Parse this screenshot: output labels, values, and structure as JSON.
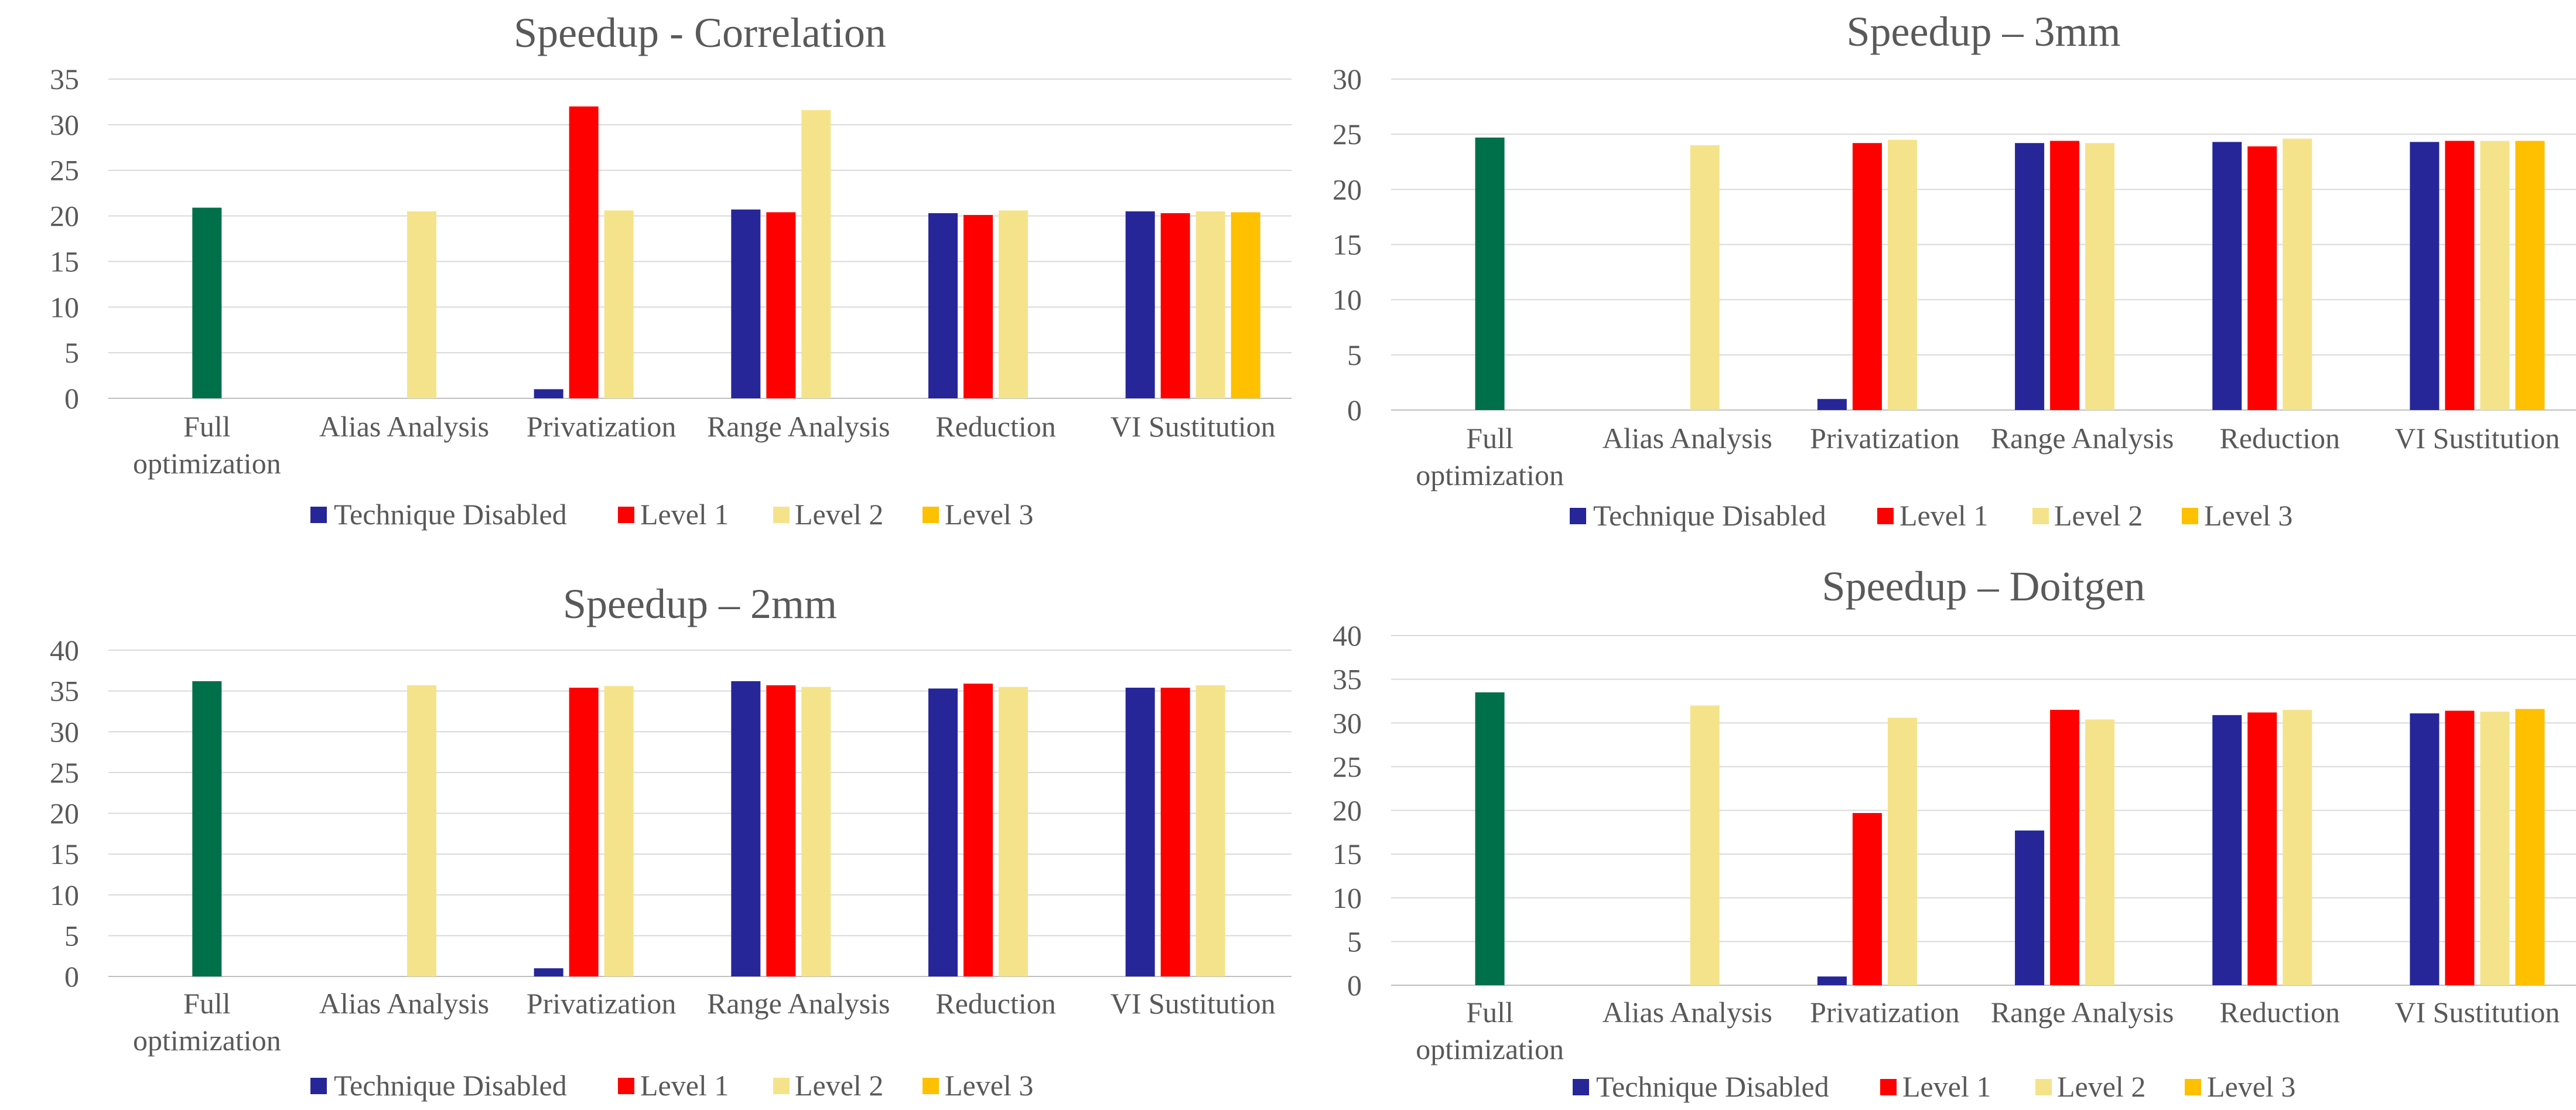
{
  "chart_data": [
    {
      "type": "bar",
      "title": "Speedup - Correlation",
      "categories": [
        [
          "Full",
          "optimization"
        ],
        [
          "Alias Analysis"
        ],
        [
          "Privatization"
        ],
        [
          "Range Analysis"
        ],
        [
          "Reduction"
        ],
        [
          "VI Sustitution"
        ]
      ],
      "ylim": [
        0,
        35
      ],
      "yticks": [
        0,
        5,
        10,
        15,
        20,
        25,
        30,
        35
      ],
      "grid": true,
      "legend_position": "bottom",
      "legend": [
        "Technique Disabled",
        "Level 1",
        "Level 2",
        "Level 3"
      ],
      "full_optimization": {
        "value": 20.9,
        "color": "#00704a"
      },
      "series": [
        {
          "name": "Technique Disabled",
          "color": "#262699",
          "values": [
            null,
            null,
            1.0,
            20.7,
            20.3,
            20.5
          ]
        },
        {
          "name": "Level 1",
          "color": "#ff0000",
          "values": [
            null,
            null,
            32.0,
            20.4,
            20.1,
            20.3
          ]
        },
        {
          "name": "Level 2",
          "color": "#f5e38c",
          "values": [
            null,
            20.5,
            20.6,
            31.6,
            20.6,
            20.5
          ]
        },
        {
          "name": "Level 3",
          "color": "#ffc000",
          "values": [
            null,
            null,
            null,
            null,
            null,
            20.4
          ]
        }
      ]
    },
    {
      "type": "bar",
      "title": "Speedup – 3mm",
      "categories": [
        [
          "Full",
          "optimization"
        ],
        [
          "Alias Analysis"
        ],
        [
          "Privatization"
        ],
        [
          "Range Analysis"
        ],
        [
          "Reduction"
        ],
        [
          "VI Sustitution"
        ]
      ],
      "ylim": [
        0,
        30
      ],
      "yticks": [
        0,
        5,
        10,
        15,
        20,
        25,
        30
      ],
      "grid": true,
      "legend_position": "bottom",
      "legend": [
        "Technique Disabled",
        "Level 1",
        "Level 2",
        "Level 3"
      ],
      "full_optimization": {
        "value": 24.7,
        "color": "#00704a"
      },
      "series": [
        {
          "name": "Technique Disabled",
          "color": "#262699",
          "values": [
            null,
            null,
            1.0,
            24.2,
            24.3,
            24.3
          ]
        },
        {
          "name": "Level 1",
          "color": "#ff0000",
          "values": [
            null,
            null,
            24.2,
            24.4,
            23.9,
            24.4
          ]
        },
        {
          "name": "Level 2",
          "color": "#f5e38c",
          "values": [
            null,
            24.0,
            24.5,
            24.2,
            24.6,
            24.4
          ]
        },
        {
          "name": "Level 3",
          "color": "#ffc000",
          "values": [
            null,
            null,
            null,
            null,
            null,
            24.4
          ]
        }
      ]
    },
    {
      "type": "bar",
      "title": "Speedup – 2mm",
      "categories": [
        [
          "Full",
          "optimization"
        ],
        [
          "Alias Analysis"
        ],
        [
          "Privatization"
        ],
        [
          "Range Analysis"
        ],
        [
          "Reduction"
        ],
        [
          "VI Sustitution"
        ]
      ],
      "ylim": [
        0,
        40
      ],
      "yticks": [
        0,
        5,
        10,
        15,
        20,
        25,
        30,
        35,
        40
      ],
      "grid": true,
      "legend_position": "bottom",
      "legend": [
        "Technique Disabled",
        "Level 1",
        "Level 2",
        "Level 3"
      ],
      "full_optimization": {
        "value": 36.2,
        "color": "#00704a"
      },
      "series": [
        {
          "name": "Technique Disabled",
          "color": "#262699",
          "values": [
            null,
            null,
            1.0,
            36.2,
            35.3,
            35.4
          ]
        },
        {
          "name": "Level 1",
          "color": "#ff0000",
          "values": [
            null,
            null,
            35.4,
            35.7,
            35.9,
            35.4
          ]
        },
        {
          "name": "Level 2",
          "color": "#f5e38c",
          "values": [
            null,
            35.7,
            35.6,
            35.5,
            35.5,
            35.7
          ]
        },
        {
          "name": "Level 3",
          "color": "#ffc000",
          "values": [
            null,
            null,
            null,
            null,
            null,
            null
          ]
        }
      ]
    },
    {
      "type": "bar",
      "title": "Speedup – Doitgen",
      "categories": [
        [
          "Full",
          "optimization"
        ],
        [
          "Alias Analysis"
        ],
        [
          "Privatization"
        ],
        [
          "Range Analysis"
        ],
        [
          "Reduction"
        ],
        [
          "VI Sustitution"
        ]
      ],
      "ylim": [
        0,
        40
      ],
      "yticks": [
        0,
        5,
        10,
        15,
        20,
        25,
        30,
        35,
        40
      ],
      "grid": true,
      "legend_position": "bottom",
      "legend": [
        "Technique Disabled",
        "Level 1",
        "Level 2",
        "Level 3"
      ],
      "full_optimization": {
        "value": 33.5,
        "color": "#00704a"
      },
      "series": [
        {
          "name": "Technique Disabled",
          "color": "#262699",
          "values": [
            null,
            null,
            1.0,
            17.7,
            30.9,
            31.1
          ]
        },
        {
          "name": "Level 1",
          "color": "#ff0000",
          "values": [
            null,
            null,
            19.7,
            31.5,
            31.2,
            31.4
          ]
        },
        {
          "name": "Level 2",
          "color": "#f5e38c",
          "values": [
            null,
            32.0,
            30.6,
            30.4,
            31.5,
            31.3
          ]
        },
        {
          "name": "Level 3",
          "color": "#ffc000",
          "values": [
            null,
            null,
            null,
            null,
            null,
            31.6
          ]
        }
      ]
    }
  ]
}
